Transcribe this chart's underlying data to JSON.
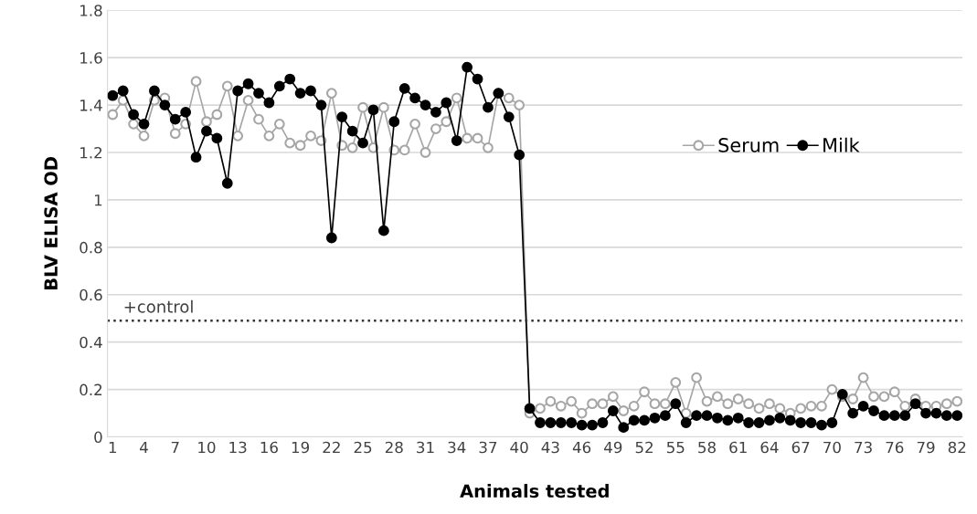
{
  "chart_data": {
    "type": "line",
    "xlabel": "Animals tested",
    "ylabel": "BLV ELISA OD",
    "categories": [
      "1",
      null,
      null,
      "4",
      null,
      null,
      "7",
      null,
      null,
      "10",
      null,
      null,
      "13",
      null,
      null,
      "16",
      null,
      null,
      "19",
      null,
      null,
      "22",
      null,
      null,
      "25",
      null,
      null,
      "28",
      null,
      null,
      "31",
      null,
      null,
      "34",
      null,
      null,
      "37",
      null,
      null,
      "40",
      null,
      null,
      "43",
      null,
      null,
      "46",
      null,
      null,
      "49",
      null,
      null,
      "52",
      null,
      null,
      "55",
      null,
      null,
      "58",
      null,
      null,
      "61",
      null,
      null,
      "64",
      null,
      null,
      "67",
      null,
      null,
      "70",
      null,
      null,
      "73",
      null,
      null,
      "76",
      null,
      null,
      "79",
      null,
      null,
      "82"
    ],
    "series": [
      {
        "name": "Serum",
        "color": "#a6a6a6",
        "values": [
          1.36,
          1.42,
          1.32,
          1.27,
          1.42,
          1.43,
          1.28,
          1.32,
          1.5,
          1.33,
          1.36,
          1.48,
          1.27,
          1.42,
          1.34,
          1.27,
          1.32,
          1.24,
          1.23,
          1.27,
          1.25,
          1.45,
          1.23,
          1.22,
          1.39,
          1.22,
          1.39,
          1.21,
          1.21,
          1.32,
          1.2,
          1.3,
          1.33,
          1.43,
          1.26,
          1.26,
          1.22,
          1.45,
          1.43,
          1.4,
          0.1,
          0.12,
          0.15,
          0.13,
          0.15,
          0.1,
          0.14,
          0.14,
          0.17,
          0.11,
          0.13,
          0.19,
          0.14,
          0.14,
          0.23,
          0.1,
          0.25,
          0.15,
          0.17,
          0.14,
          0.16,
          0.14,
          0.12,
          0.14,
          0.12,
          0.1,
          0.12,
          0.13,
          0.13,
          0.2,
          0.17,
          0.16,
          0.25,
          0.17,
          0.17,
          0.19,
          0.13,
          0.16,
          0.13,
          0.13,
          0.14,
          0.15
        ]
      },
      {
        "name": "Milk",
        "color": "#000000",
        "values": [
          1.44,
          1.46,
          1.36,
          1.32,
          1.46,
          1.4,
          1.34,
          1.37,
          1.18,
          1.29,
          1.26,
          1.07,
          1.46,
          1.49,
          1.45,
          1.41,
          1.48,
          1.51,
          1.45,
          1.46,
          1.4,
          0.84,
          1.35,
          1.29,
          1.24,
          1.38,
          0.87,
          1.33,
          1.47,
          1.43,
          1.4,
          1.37,
          1.41,
          1.25,
          1.56,
          1.51,
          1.39,
          1.45,
          1.35,
          1.19,
          0.12,
          0.06,
          0.06,
          0.06,
          0.06,
          0.05,
          0.05,
          0.06,
          0.11,
          0.04,
          0.07,
          0.07,
          0.08,
          0.09,
          0.14,
          0.06,
          0.09,
          0.09,
          0.08,
          0.07,
          0.08,
          0.06,
          0.06,
          0.07,
          0.08,
          0.07,
          0.06,
          0.06,
          0.05,
          0.06,
          0.18,
          0.1,
          0.13,
          0.11,
          0.09,
          0.09,
          0.09,
          0.14,
          0.1,
          0.1,
          0.09,
          0.09
        ]
      }
    ],
    "ylim": [
      0,
      1.8
    ],
    "yticks": [
      0,
      {
        "value": 0.2,
        "label": "0.2"
      },
      {
        "value": 0.4,
        "label": "0.4"
      },
      {
        "value": 0.6,
        "label": "0.6"
      },
      {
        "value": 0.8,
        "label": "0.8"
      },
      1,
      {
        "value": 1.2,
        "label": "1.2"
      },
      {
        "value": 1.4,
        "label": "1.4"
      },
      {
        "value": 1.6,
        "label": "1.6"
      },
      {
        "value": 1.8,
        "label": "1.8"
      }
    ],
    "ref_lines": [
      {
        "axis": "y",
        "value": 0.49,
        "label": "+control",
        "color": "#333333",
        "line_style": "dotted"
      }
    ],
    "grid": "y",
    "legend": "right",
    "marker": "circle",
    "line_style": "solid"
  }
}
